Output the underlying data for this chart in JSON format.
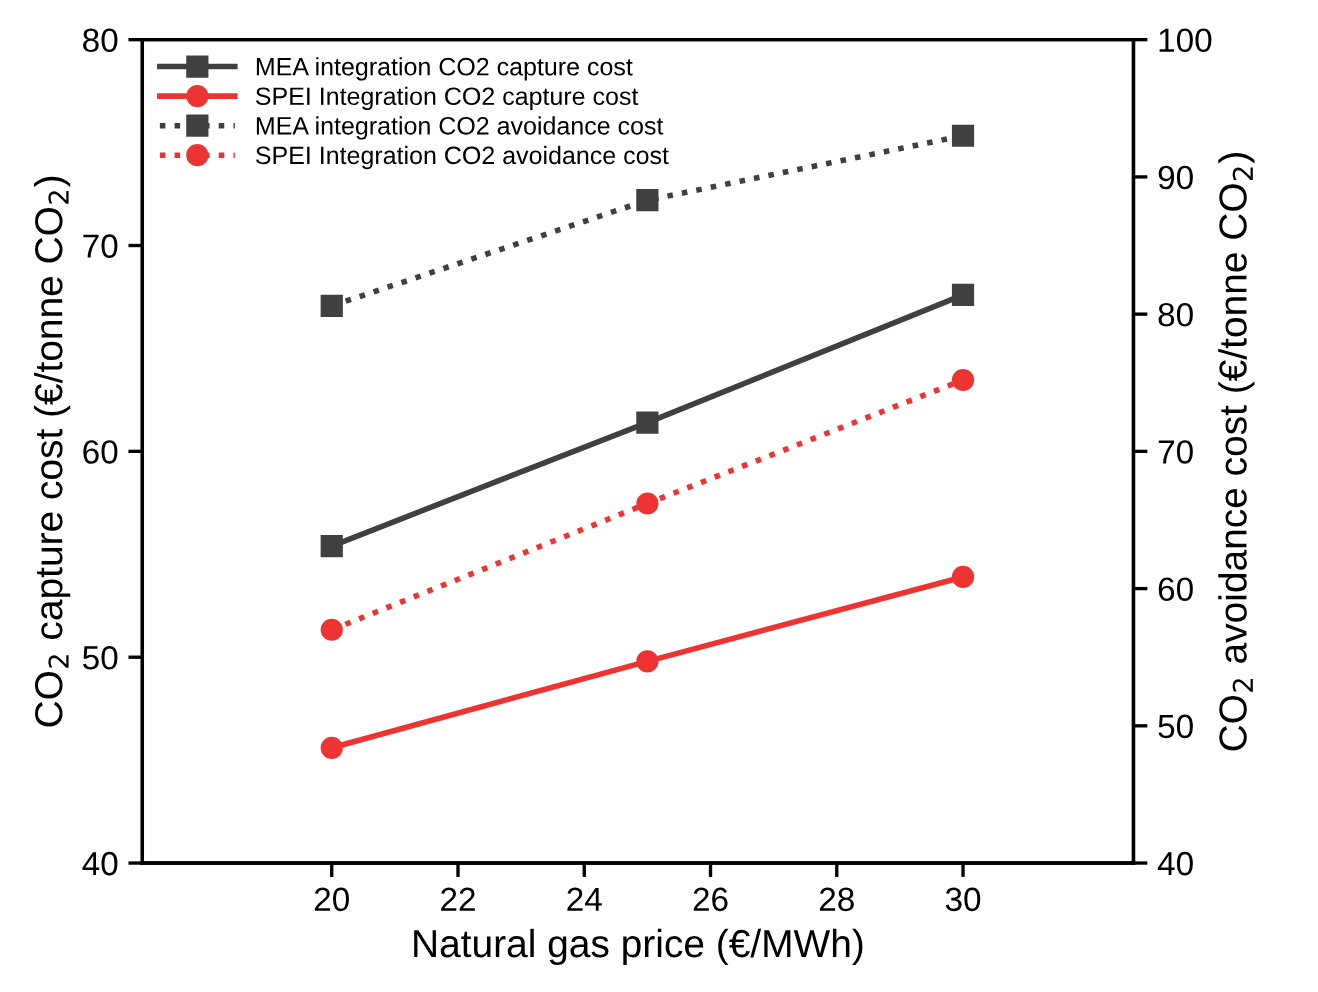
{
  "chart_data": {
    "type": "line",
    "xlabel": "Natural gas price (€/MWh)",
    "ylabel": "CO$_{2}$ capture cost (€/tonne CO$_{2}$)",
    "y2label": "CO$_{2}$ avoidance cost (€/tonne CO$_{2}$)",
    "x": [
      20,
      25,
      30
    ],
    "xlim": [
      17,
      32.7
    ],
    "xticks": [
      20,
      22,
      24,
      26,
      28,
      30
    ],
    "ylim": [
      40,
      80
    ],
    "yticks": [
      40,
      50,
      60,
      70,
      80
    ],
    "y2lim": [
      40,
      100
    ],
    "y2ticks": [
      40,
      50,
      60,
      70,
      80,
      90,
      100
    ],
    "legend": "top left",
    "grid": false,
    "series": [
      {
        "name": "MEA integration CO2 capture cost",
        "color": "#404040",
        "values": [
          55.4,
          61.4,
          67.6
        ],
        "marker": "square",
        "line_style": "solid"
      },
      {
        "name": "SPEI Integration CO2 capture cost",
        "color": "#ee3333",
        "values": [
          45.6,
          49.8,
          53.9
        ],
        "marker": "circle",
        "line_style": "solid"
      },
      {
        "name": "MEA integration CO2 avoidance cost",
        "color": "#404040",
        "values": [
          80.6,
          88.3,
          93.0
        ],
        "marker": "square",
        "line_style": "dotted",
        "axis": "y2"
      },
      {
        "name": "SPEI Integration CO2 avoidance cost",
        "color": "#ee3333",
        "values": [
          57.0,
          66.2,
          75.2
        ],
        "marker": "circle",
        "line_style": "dotted",
        "axis": "y2"
      }
    ]
  }
}
